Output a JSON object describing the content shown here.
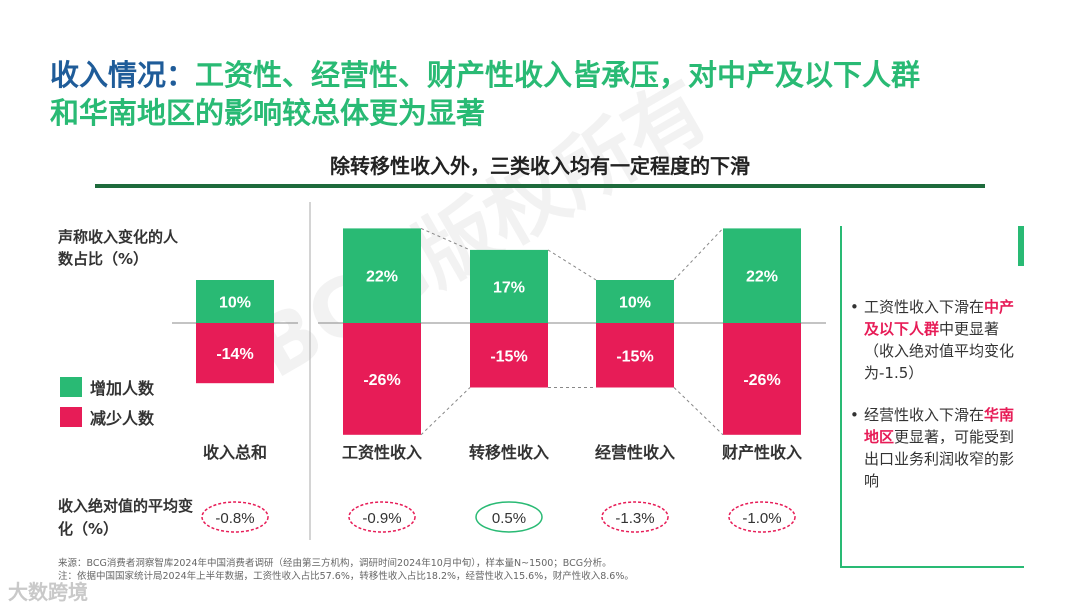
{
  "title": {
    "prefix": "收入情况：",
    "line1": "工资性、经营性、财产性收入皆承压，对中产及以下人群",
    "line2": "和华南地区的影响较总体更为显著"
  },
  "subtitle": "除转移性收入外，三类收入均有一定程度的下滑",
  "y_axis_label": "声称收入变化的人数占比（%）",
  "legend": [
    {
      "label": "增加人数",
      "color": "#29ba74"
    },
    {
      "label": "减少人数",
      "color": "#e71c57"
    }
  ],
  "avg_label": "收入绝对值的平均变化（%）",
  "chart_data": {
    "type": "bar",
    "stacked": "diverging",
    "categories": [
      "收入总和",
      "工资性收入",
      "转移性收入",
      "经营性收入",
      "财产性收入"
    ],
    "series": [
      {
        "name": "增加人数",
        "values": [
          10,
          22,
          17,
          10,
          22
        ],
        "color": "#29ba74"
      },
      {
        "name": "减少人数",
        "values": [
          -14,
          -26,
          -15,
          -15,
          -26
        ],
        "color": "#e71c57"
      }
    ],
    "value_labels_increase": [
      "10%",
      "22%",
      "17%",
      "10%",
      "22%"
    ],
    "value_labels_decrease": [
      "-14%",
      "-26%",
      "-15%",
      "-15%",
      "-26%"
    ],
    "avg_change": [
      -0.8,
      -0.9,
      0.5,
      -1.3,
      -1.0
    ],
    "avg_change_labels": [
      "-0.8%",
      "-0.9%",
      "0.5%",
      "-1.3%",
      "-1.0%"
    ],
    "avg_colors": {
      "negative": "#e71c57",
      "positive": "#29ba74"
    }
  },
  "notes": [
    {
      "pre": "工资性收入下滑在",
      "highlight": "中产及以下人群",
      "post": "中更显著（收入绝对值平均变化为-1.5）"
    },
    {
      "pre": "经营性收入下滑在",
      "highlight": "华南地区",
      "post": "更显著，可能受到出口业务利润收窄的影响"
    }
  ],
  "footer": {
    "source": "来源：BCG消费者洞察智库2024年中国消费者调研（经由第三方机构，调研时间2024年10月中旬），样本量N~1500；BCG分析。",
    "note": "注：依据中国国家统计局2024年上半年数据，工资性收入占比57.6%，转移性收入占比18.2%，经营性收入15.6%，财产性收入8.6%。"
  },
  "watermark": "BCG版权所有",
  "logo_text": "大数跨境"
}
